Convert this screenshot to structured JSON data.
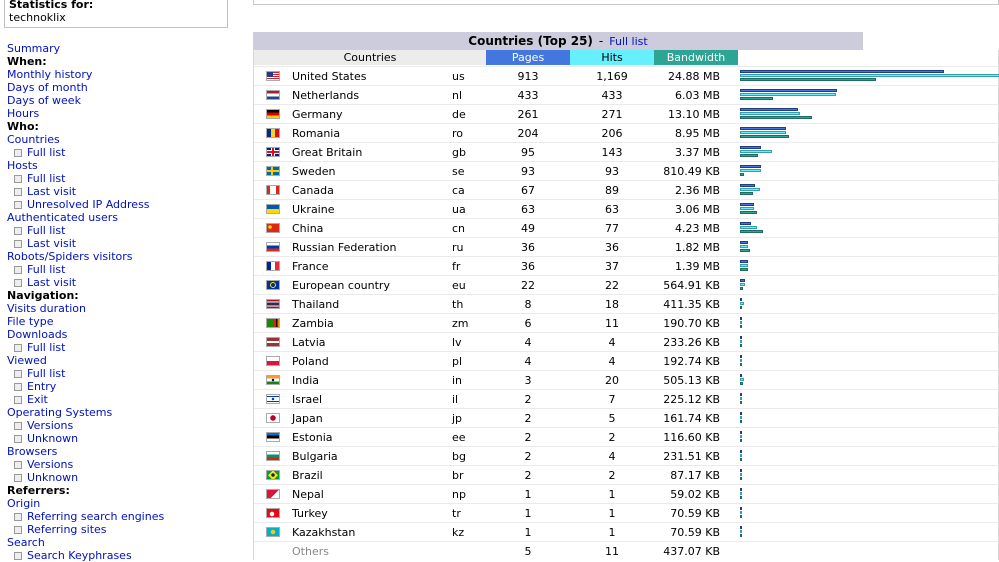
{
  "stats_for": {
    "label": "Statistics for:",
    "site": "technoklix"
  },
  "menu": [
    {
      "type": "link",
      "text": "Summary",
      "name": "menu-summary"
    },
    {
      "type": "head",
      "text": "When:",
      "name": "menu-heading-when"
    },
    {
      "type": "link",
      "text": "Monthly history",
      "name": "menu-monthly-history"
    },
    {
      "type": "link",
      "text": "Days of month",
      "name": "menu-days-of-month"
    },
    {
      "type": "link",
      "text": "Days of week",
      "name": "menu-days-of-week"
    },
    {
      "type": "link",
      "text": "Hours",
      "name": "menu-hours"
    },
    {
      "type": "head",
      "text": "Who:",
      "name": "menu-heading-who"
    },
    {
      "type": "link",
      "text": "Countries",
      "name": "menu-countries"
    },
    {
      "type": "sub",
      "text": "Full list",
      "name": "menu-countries-full-list"
    },
    {
      "type": "link",
      "text": "Hosts",
      "name": "menu-hosts"
    },
    {
      "type": "sub",
      "text": "Full list",
      "name": "menu-hosts-full-list"
    },
    {
      "type": "sub",
      "text": "Last visit",
      "name": "menu-hosts-last-visit"
    },
    {
      "type": "sub",
      "text": "Unresolved IP Address",
      "name": "menu-unresolved-ip"
    },
    {
      "type": "link",
      "text": "Authenticated users",
      "name": "menu-authenticated-users"
    },
    {
      "type": "sub",
      "text": "Full list",
      "name": "menu-auth-full-list"
    },
    {
      "type": "sub",
      "text": "Last visit",
      "name": "menu-auth-last-visit"
    },
    {
      "type": "link",
      "text": "Robots/Spiders visitors",
      "name": "menu-robots"
    },
    {
      "type": "sub",
      "text": "Full list",
      "name": "menu-robots-full-list"
    },
    {
      "type": "sub",
      "text": "Last visit",
      "name": "menu-robots-last-visit"
    },
    {
      "type": "head",
      "text": "Navigation:",
      "name": "menu-heading-navigation"
    },
    {
      "type": "link",
      "text": "Visits duration",
      "name": "menu-visits-duration"
    },
    {
      "type": "link",
      "text": "File type",
      "name": "menu-file-type"
    },
    {
      "type": "link",
      "text": "Downloads",
      "name": "menu-downloads"
    },
    {
      "type": "sub",
      "text": "Full list",
      "name": "menu-downloads-full-list"
    },
    {
      "type": "link",
      "text": "Viewed",
      "name": "menu-viewed"
    },
    {
      "type": "sub",
      "text": "Full list",
      "name": "menu-viewed-full-list"
    },
    {
      "type": "sub",
      "text": "Entry",
      "name": "menu-viewed-entry"
    },
    {
      "type": "sub",
      "text": "Exit",
      "name": "menu-viewed-exit"
    },
    {
      "type": "link",
      "text": "Operating Systems",
      "name": "menu-operating-systems"
    },
    {
      "type": "sub",
      "text": "Versions",
      "name": "menu-os-versions"
    },
    {
      "type": "sub",
      "text": "Unknown",
      "name": "menu-os-unknown"
    },
    {
      "type": "link",
      "text": "Browsers",
      "name": "menu-browsers"
    },
    {
      "type": "sub",
      "text": "Versions",
      "name": "menu-browsers-versions"
    },
    {
      "type": "sub",
      "text": "Unknown",
      "name": "menu-browsers-unknown"
    },
    {
      "type": "head",
      "text": "Referrers:",
      "name": "menu-heading-referrers"
    },
    {
      "type": "link",
      "text": "Origin",
      "name": "menu-origin"
    },
    {
      "type": "sub",
      "text": "Referring search engines",
      "name": "menu-referring-search-engines"
    },
    {
      "type": "sub",
      "text": "Referring sites",
      "name": "menu-referring-sites"
    },
    {
      "type": "link",
      "text": "Search",
      "name": "menu-search"
    },
    {
      "type": "sub",
      "text": "Search Keyphrases",
      "name": "menu-search-keyphrases"
    }
  ],
  "panel": {
    "title": "Countries (Top 25)",
    "separator": "-",
    "full_list": "Full list"
  },
  "columns": {
    "countries": "Countries",
    "pages": "Pages",
    "hits": "Hits",
    "bandwidth": "Bandwidth"
  },
  "colors": {
    "pages": "#4477dd",
    "hits": "#66f0ff",
    "bandwidth": "#2ea495"
  },
  "rows": [
    {
      "country": "United States",
      "code": "us",
      "pages": "913",
      "hits": "1,169",
      "bandwidth": "24.88 MB",
      "p": 913,
      "h": 1169,
      "b": 24.88,
      "flag": "us"
    },
    {
      "country": "Netherlands",
      "code": "nl",
      "pages": "433",
      "hits": "433",
      "bandwidth": "6.03 MB",
      "p": 433,
      "h": 433,
      "b": 6.03,
      "flag": "nl"
    },
    {
      "country": "Germany",
      "code": "de",
      "pages": "261",
      "hits": "271",
      "bandwidth": "13.10 MB",
      "p": 261,
      "h": 271,
      "b": 13.1,
      "flag": "de"
    },
    {
      "country": "Romania",
      "code": "ro",
      "pages": "204",
      "hits": "206",
      "bandwidth": "8.95 MB",
      "p": 204,
      "h": 206,
      "b": 8.95,
      "flag": "ro"
    },
    {
      "country": "Great Britain",
      "code": "gb",
      "pages": "95",
      "hits": "143",
      "bandwidth": "3.37 MB",
      "p": 95,
      "h": 143,
      "b": 3.37,
      "flag": "gb"
    },
    {
      "country": "Sweden",
      "code": "se",
      "pages": "93",
      "hits": "93",
      "bandwidth": "810.49 KB",
      "p": 93,
      "h": 93,
      "b": 0.79,
      "flag": "se"
    },
    {
      "country": "Canada",
      "code": "ca",
      "pages": "67",
      "hits": "89",
      "bandwidth": "2.36 MB",
      "p": 67,
      "h": 89,
      "b": 2.36,
      "flag": "ca"
    },
    {
      "country": "Ukraine",
      "code": "ua",
      "pages": "63",
      "hits": "63",
      "bandwidth": "3.06 MB",
      "p": 63,
      "h": 63,
      "b": 3.06,
      "flag": "ua"
    },
    {
      "country": "China",
      "code": "cn",
      "pages": "49",
      "hits": "77",
      "bandwidth": "4.23 MB",
      "p": 49,
      "h": 77,
      "b": 4.23,
      "flag": "cn"
    },
    {
      "country": "Russian Federation",
      "code": "ru",
      "pages": "36",
      "hits": "36",
      "bandwidth": "1.82 MB",
      "p": 36,
      "h": 36,
      "b": 1.82,
      "flag": "ru"
    },
    {
      "country": "France",
      "code": "fr",
      "pages": "36",
      "hits": "37",
      "bandwidth": "1.39 MB",
      "p": 36,
      "h": 37,
      "b": 1.39,
      "flag": "fr"
    },
    {
      "country": "European country",
      "code": "eu",
      "pages": "22",
      "hits": "22",
      "bandwidth": "564.91 KB",
      "p": 22,
      "h": 22,
      "b": 0.55,
      "flag": "eu"
    },
    {
      "country": "Thailand",
      "code": "th",
      "pages": "8",
      "hits": "18",
      "bandwidth": "411.35 KB",
      "p": 8,
      "h": 18,
      "b": 0.4,
      "flag": "th"
    },
    {
      "country": "Zambia",
      "code": "zm",
      "pages": "6",
      "hits": "11",
      "bandwidth": "190.70 KB",
      "p": 6,
      "h": 11,
      "b": 0.19,
      "flag": "zm"
    },
    {
      "country": "Latvia",
      "code": "lv",
      "pages": "4",
      "hits": "4",
      "bandwidth": "233.26 KB",
      "p": 4,
      "h": 4,
      "b": 0.23,
      "flag": "lv"
    },
    {
      "country": "Poland",
      "code": "pl",
      "pages": "4",
      "hits": "4",
      "bandwidth": "192.74 KB",
      "p": 4,
      "h": 4,
      "b": 0.19,
      "flag": "pl"
    },
    {
      "country": "India",
      "code": "in",
      "pages": "3",
      "hits": "20",
      "bandwidth": "505.13 KB",
      "p": 3,
      "h": 20,
      "b": 0.49,
      "flag": "in"
    },
    {
      "country": "Israel",
      "code": "il",
      "pages": "2",
      "hits": "7",
      "bandwidth": "225.12 KB",
      "p": 2,
      "h": 7,
      "b": 0.22,
      "flag": "il"
    },
    {
      "country": "Japan",
      "code": "jp",
      "pages": "2",
      "hits": "5",
      "bandwidth": "161.74 KB",
      "p": 2,
      "h": 5,
      "b": 0.16,
      "flag": "jp"
    },
    {
      "country": "Estonia",
      "code": "ee",
      "pages": "2",
      "hits": "2",
      "bandwidth": "116.60 KB",
      "p": 2,
      "h": 2,
      "b": 0.11,
      "flag": "ee"
    },
    {
      "country": "Bulgaria",
      "code": "bg",
      "pages": "2",
      "hits": "4",
      "bandwidth": "231.51 KB",
      "p": 2,
      "h": 4,
      "b": 0.23,
      "flag": "bg"
    },
    {
      "country": "Brazil",
      "code": "br",
      "pages": "2",
      "hits": "2",
      "bandwidth": "87.17 KB",
      "p": 2,
      "h": 2,
      "b": 0.085,
      "flag": "br"
    },
    {
      "country": "Nepal",
      "code": "np",
      "pages": "1",
      "hits": "1",
      "bandwidth": "59.02 KB",
      "p": 1,
      "h": 1,
      "b": 0.058,
      "flag": "np"
    },
    {
      "country": "Turkey",
      "code": "tr",
      "pages": "1",
      "hits": "1",
      "bandwidth": "70.59 KB",
      "p": 1,
      "h": 1,
      "b": 0.069,
      "flag": "tr"
    },
    {
      "country": "Kazakhstan",
      "code": "kz",
      "pages": "1",
      "hits": "1",
      "bandwidth": "70.59 KB",
      "p": 1,
      "h": 1,
      "b": 0.069,
      "flag": "kz"
    }
  ],
  "others": {
    "label": "Others",
    "pages": "5",
    "hits": "11",
    "bandwidth": "437.07 KB"
  }
}
